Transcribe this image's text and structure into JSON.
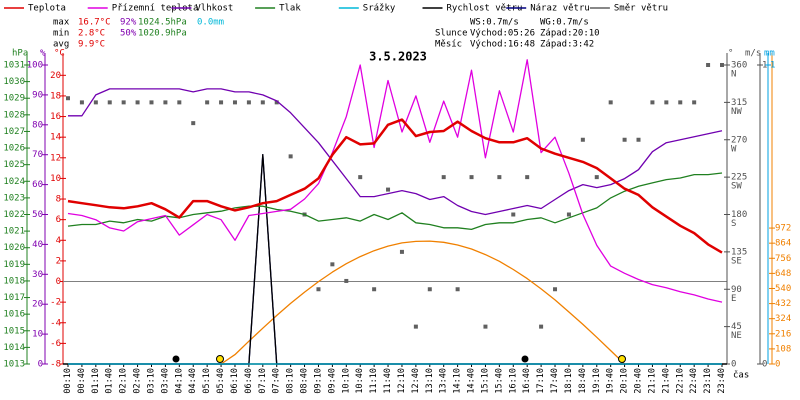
{
  "chart_data": {
    "type": "line",
    "title": "3.5.2023",
    "x_label": "čas",
    "categories": [
      "00:10",
      "00:40",
      "01:10",
      "01:40",
      "02:10",
      "02:40",
      "03:10",
      "03:40",
      "04:10",
      "04:40",
      "05:10",
      "05:40",
      "06:10",
      "06:40",
      "07:10",
      "07:40",
      "08:10",
      "08:40",
      "09:10",
      "09:40",
      "10:10",
      "10:40",
      "11:10",
      "11:40",
      "12:10",
      "12:40",
      "13:10",
      "13:40",
      "14:10",
      "14:40",
      "15:10",
      "15:40",
      "16:10",
      "16:40",
      "17:10",
      "17:40",
      "18:10",
      "18:40",
      "19:10",
      "19:40",
      "20:10",
      "20:40",
      "21:10",
      "21:40",
      "22:10",
      "22:40",
      "23:10",
      "23:40"
    ],
    "axes": [
      {
        "id": "y",
        "label": "°C",
        "color": "#e00000",
        "lim": [
          -8,
          21
        ],
        "ticks": [
          -8,
          -6,
          -4,
          -2,
          0,
          2,
          4,
          6,
          8,
          10,
          12,
          14,
          16,
          18,
          20
        ],
        "zero_line": true
      },
      {
        "id": "y2",
        "label": "%",
        "color": "#8000b0",
        "lim": [
          0,
          100
        ],
        "ticks": [
          0,
          10,
          20,
          30,
          40,
          50,
          60,
          70,
          80,
          90,
          100
        ]
      },
      {
        "id": "y3",
        "label": "hPa",
        "color": "#208020",
        "lim": [
          1013,
          1031
        ],
        "ticks": [
          1013,
          1014,
          1015,
          1016,
          1017,
          1018,
          1019,
          1020,
          1021,
          1022,
          1023,
          1024,
          1025,
          1026,
          1027,
          1028,
          1029,
          1030,
          1031
        ]
      },
      {
        "id": "y4",
        "color": "#f08000",
        "lim": [
          0,
          2138
        ],
        "ticks": [
          0,
          108,
          216,
          324,
          432,
          540,
          648,
          756,
          864,
          972
        ]
      },
      {
        "id": "y5",
        "label": "°",
        "color": "#505050",
        "lim": [
          0,
          360
        ],
        "ticks": [
          0,
          45,
          90,
          135,
          180,
          225,
          270,
          315,
          360
        ],
        "compass": [
          null,
          "NE",
          "E",
          "SE",
          "S",
          "SW",
          "W",
          "NW",
          "N"
        ]
      },
      {
        "id": "y6",
        "label": "m/s",
        "color": "#505050",
        "lim": [
          0,
          1
        ],
        "ticks": [
          0,
          1
        ]
      },
      {
        "id": "y7",
        "label": "mm",
        "color": "#00a0e0",
        "lim": [
          0,
          1
        ],
        "ticks": [
          1
        ]
      }
    ],
    "series": [
      {
        "name": "Teplota",
        "color": "#e00000",
        "axis": "y",
        "style": "thick",
        "values": [
          7.8,
          7.6,
          7.4,
          7.2,
          7.1,
          7.3,
          7.6,
          7.0,
          6.2,
          7.8,
          7.8,
          7.3,
          6.9,
          7.2,
          7.6,
          7.8,
          8.4,
          9.0,
          10.0,
          12.3,
          14.0,
          13.3,
          13.4,
          15.2,
          15.7,
          14.1,
          14.5,
          14.6,
          15.5,
          14.6,
          13.9,
          13.5,
          13.5,
          13.9,
          12.9,
          12.4,
          12.0,
          11.6,
          11.0,
          10.0,
          9.0,
          8.4,
          7.2,
          6.3,
          5.4,
          4.7,
          3.6,
          2.8
        ]
      },
      {
        "name": "Přízemní teplota",
        "color": "#e000e0",
        "axis": "y",
        "style": "line",
        "values": [
          6.6,
          6.4,
          6.0,
          5.2,
          4.9,
          5.8,
          6.1,
          6.4,
          4.5,
          5.5,
          6.5,
          6.0,
          4.0,
          6.4,
          6.6,
          6.8,
          7.0,
          8.0,
          9.5,
          12.5,
          16.0,
          21.0,
          13.0,
          19.5,
          14.5,
          18.0,
          13.5,
          17.5,
          14.0,
          20.5,
          12.0,
          18.5,
          14.5,
          21.5,
          12.5,
          14.0,
          10.5,
          6.5,
          3.5,
          1.5,
          0.8,
          0.2,
          -0.3,
          -0.6,
          -1.0,
          -1.3,
          -1.7,
          -2.0
        ]
      },
      {
        "name": "Vlhkost",
        "color": "#7000b0",
        "axis": "y2",
        "style": "line",
        "values": [
          83,
          83,
          90,
          92,
          92,
          92,
          92,
          92,
          92,
          91,
          92,
          92,
          91,
          91,
          90,
          88,
          84,
          79,
          74,
          68,
          62,
          56,
          56,
          57,
          58,
          57,
          55,
          56,
          53,
          51,
          50,
          51,
          52,
          53,
          52,
          55,
          58,
          60,
          59,
          60,
          62,
          65,
          71,
          74,
          75,
          76,
          77,
          78
        ]
      },
      {
        "name": "Tlak",
        "color": "#208020",
        "axis": "y3",
        "style": "line",
        "values": [
          1021.3,
          1021.4,
          1021.4,
          1021.6,
          1021.5,
          1021.7,
          1021.6,
          1021.9,
          1021.8,
          1022.0,
          1022.1,
          1022.2,
          1022.4,
          1022.5,
          1022.5,
          1022.3,
          1022.2,
          1022.0,
          1021.6,
          1021.7,
          1021.8,
          1021.6,
          1022.0,
          1021.7,
          1022.1,
          1021.5,
          1021.4,
          1021.2,
          1021.2,
          1021.1,
          1021.4,
          1021.5,
          1021.5,
          1021.7,
          1021.8,
          1021.5,
          1021.8,
          1022.1,
          1022.4,
          1023.0,
          1023.4,
          1023.7,
          1023.9,
          1024.1,
          1024.2,
          1024.4,
          1024.4,
          1024.5
        ]
      },
      {
        "name": "Srážky",
        "color": "#00b8d8",
        "axis": "y7",
        "style": "line",
        "values": [
          0,
          0,
          0,
          0,
          0,
          0,
          0,
          0,
          0,
          0,
          0,
          0,
          0,
          0,
          0,
          0,
          0,
          0,
          0,
          0,
          0,
          0,
          0,
          0,
          0,
          0,
          0,
          0,
          0,
          0,
          0,
          0,
          0,
          0,
          0,
          0,
          0,
          0,
          0,
          0,
          0,
          0,
          0,
          0,
          0,
          0,
          0,
          0
        ]
      },
      {
        "name": "Rychlost větru",
        "color": "#000000",
        "axis": "y6",
        "style": "line",
        "values": [
          0,
          0,
          0,
          0,
          0,
          0,
          0,
          0,
          0,
          0,
          0,
          0,
          0,
          0,
          0.7,
          0,
          0,
          0,
          0,
          0,
          0,
          0,
          0,
          0,
          0,
          0,
          0,
          0,
          0,
          0,
          0,
          0,
          0,
          0,
          0,
          0,
          0,
          0,
          0,
          0,
          0,
          0,
          0,
          0,
          0,
          0,
          0,
          0
        ]
      },
      {
        "name": "Náraz větru",
        "color": "#000080",
        "axis": "y6",
        "style": "line",
        "values": [
          0,
          0,
          0,
          0,
          0,
          0,
          0,
          0,
          0,
          0,
          0,
          0,
          0,
          0,
          0.7,
          0,
          0,
          0,
          0,
          0,
          0,
          0,
          0,
          0,
          0,
          0,
          0,
          0,
          0,
          0,
          0,
          0,
          0,
          0,
          0,
          0,
          0,
          0,
          0,
          0,
          0,
          0,
          0,
          0,
          0,
          0,
          0,
          0
        ]
      },
      {
        "name": "Směr větru",
        "color": "#606060",
        "axis": "y5",
        "style": "points",
        "values": [
          320,
          315,
          315,
          315,
          315,
          315,
          315,
          315,
          315,
          290,
          315,
          315,
          315,
          315,
          315,
          315,
          250,
          180,
          90,
          120,
          100,
          225,
          90,
          210,
          135,
          45,
          90,
          225,
          90,
          225,
          45,
          225,
          180,
          225,
          45,
          90,
          180,
          270,
          225,
          315,
          270,
          270,
          315,
          315,
          315,
          315,
          360,
          360
        ]
      },
      {
        "color": "#f08000",
        "axis": "y4",
        "style": "line",
        "values": [
          null,
          null,
          null,
          null,
          null,
          null,
          null,
          null,
          null,
          null,
          null,
          0,
          67,
          163,
          256,
          347,
          433,
          514,
          589,
          657,
          717,
          768,
          810,
          843,
          866,
          877,
          879,
          870,
          851,
          822,
          782,
          734,
          676,
          611,
          537,
          458,
          372,
          283,
          191,
          96,
          0,
          null,
          null,
          null,
          null,
          null,
          null,
          null
        ]
      }
    ]
  },
  "stats": {
    "rows": [
      {
        "label": "max",
        "values": [
          {
            "text": "16.7°C",
            "color": "#e00000"
          },
          {
            "text": "92%",
            "color": "#8000b0"
          },
          {
            "text": "1024.5hPa",
            "color": "#208020"
          },
          {
            "text": "0.0mm",
            "color": "#00b8d8"
          }
        ]
      },
      {
        "label": "min",
        "values": [
          {
            "text": "2.8°C",
            "color": "#e00000"
          },
          {
            "text": "50%",
            "color": "#8000b0"
          },
          {
            "text": "1020.9hPa",
            "color": "#208020"
          }
        ]
      },
      {
        "label": "avg",
        "values": [
          {
            "text": "9.9°C",
            "color": "#e00000"
          }
        ]
      }
    ]
  },
  "astro": {
    "rows": [
      [
        "WS:0.7m/s",
        "WG:0.7m/s"
      ],
      [
        "Slunce",
        "Východ:05:26",
        "Západ:20:10"
      ],
      [
        "Měsíc",
        "Východ:16:48",
        "Západ:3:42"
      ]
    ]
  }
}
